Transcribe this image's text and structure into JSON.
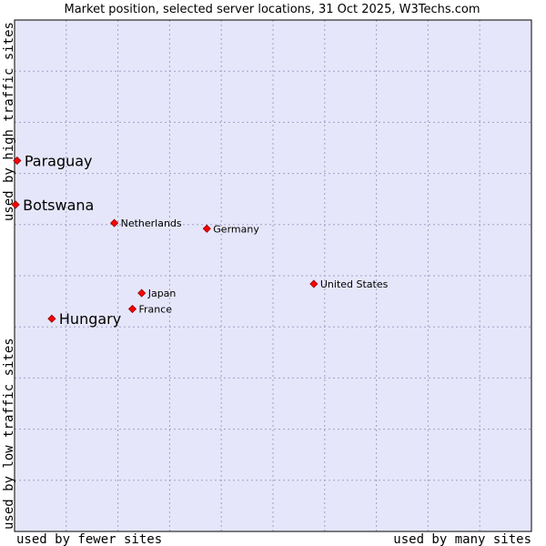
{
  "chart_data": {
    "type": "scatter",
    "title": "Market position, selected server locations, 31 Oct 2025, W3Techs.com",
    "xlabel_left": "used by fewer sites",
    "xlabel_right": "used by many sites",
    "ylabel_top": "used by high traffic sites",
    "ylabel_bottom": "used by low traffic sites",
    "xlim": [
      0,
      100
    ],
    "ylim": [
      0,
      100
    ],
    "grid": true,
    "grid_x_divisions": 10,
    "grid_y_divisions": 10,
    "colors": {
      "plot_background": "#e6e6fa",
      "point_fill": "#ff0000",
      "point_stroke": "#8b0000",
      "frame": "#000000"
    },
    "points": [
      {
        "name": "Paraguay",
        "x": 0.5,
        "y": 72.5,
        "emphasis": true
      },
      {
        "name": "Botswana",
        "x": 0.2,
        "y": 63.9,
        "emphasis": true
      },
      {
        "name": "Netherlands",
        "x": 19.3,
        "y": 60.3,
        "emphasis": false
      },
      {
        "name": "Germany",
        "x": 37.2,
        "y": 59.2,
        "emphasis": false
      },
      {
        "name": "United States",
        "x": 57.9,
        "y": 48.4,
        "emphasis": false
      },
      {
        "name": "Japan",
        "x": 24.6,
        "y": 46.6,
        "emphasis": false
      },
      {
        "name": "France",
        "x": 22.8,
        "y": 43.5,
        "emphasis": false
      },
      {
        "name": "Hungary",
        "x": 7.2,
        "y": 41.6,
        "emphasis": true
      }
    ]
  }
}
